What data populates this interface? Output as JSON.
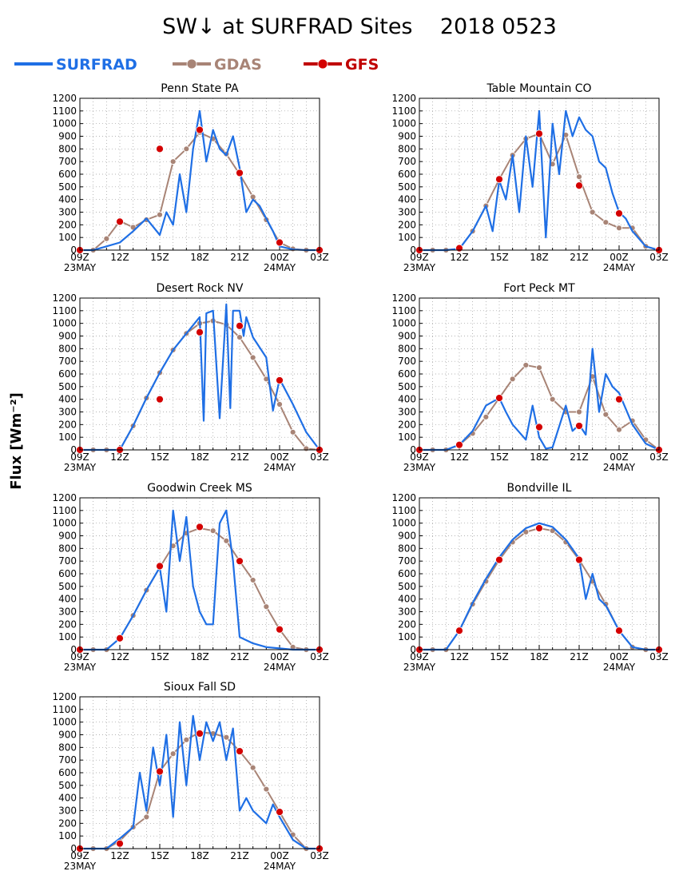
{
  "title": "SW↓ at SURFRAD Sites    2018 0523",
  "ylabel": "Flux [Wm⁻²]",
  "legend": [
    {
      "name": "SURFRAD",
      "color": "#1f6fe5",
      "marker": "none"
    },
    {
      "name": "GDAS",
      "color": "#a88476",
      "marker": "circle"
    },
    {
      "name": "GFS",
      "color": "#c00000",
      "marker": "circle"
    }
  ],
  "colors": {
    "surfrad": "#1f6fe5",
    "gdas": "#a88476",
    "gfs": "#c00000",
    "gfs_marker": "#d40000"
  },
  "x_tick_labels": [
    "09Z",
    "12Z",
    "15Z",
    "18Z",
    "21Z",
    "00Z",
    "03Z"
  ],
  "x_date_labels": [
    {
      "text": "23MAY",
      "at": "09Z"
    },
    {
      "text": "24MAY",
      "at": "00Z"
    }
  ],
  "chart_data": [
    {
      "type": "line",
      "title": "Penn State PA",
      "xlim": [
        "09Z",
        "03Z"
      ],
      "ylim": [
        0,
        1200
      ],
      "grid": true,
      "y_ticks": [
        0,
        100,
        200,
        300,
        400,
        500,
        600,
        700,
        800,
        900,
        1000,
        1100,
        1200
      ],
      "series": [
        {
          "name": "GDAS",
          "x": [
            9,
            10,
            11,
            12,
            13,
            14,
            15,
            16,
            17,
            18,
            19,
            20,
            21,
            22,
            23,
            24,
            25,
            26,
            27
          ],
          "y": [
            0,
            0,
            90,
            230,
            180,
            240,
            280,
            700,
            800,
            930,
            880,
            760,
            600,
            420,
            240,
            60,
            10,
            0,
            0
          ]
        },
        {
          "name": "GFS",
          "x": [
            9,
            12,
            15,
            18,
            21,
            24,
            27
          ],
          "y": [
            0,
            225,
            800,
            950,
            610,
            60,
            0
          ]
        },
        {
          "name": "SURFRAD",
          "x": [
            9,
            10,
            11,
            12,
            13,
            14,
            15,
            15.5,
            16,
            16.5,
            17,
            17.5,
            18,
            18.5,
            19,
            19.5,
            20,
            20.5,
            21,
            21.5,
            22,
            22.5,
            23,
            23.5,
            24,
            25,
            26,
            27
          ],
          "y": [
            0,
            0,
            30,
            60,
            150,
            250,
            120,
            300,
            200,
            600,
            300,
            800,
            1100,
            700,
            950,
            800,
            750,
            900,
            650,
            300,
            400,
            350,
            250,
            150,
            30,
            5,
            0,
            0
          ]
        }
      ]
    },
    {
      "type": "line",
      "title": "Table Mountain CO",
      "xlim": [
        "09Z",
        "03Z"
      ],
      "ylim": [
        0,
        1200
      ],
      "grid": true,
      "y_ticks": [
        0,
        100,
        200,
        300,
        400,
        500,
        600,
        700,
        800,
        900,
        1000,
        1100,
        1200
      ],
      "series": [
        {
          "name": "GDAS",
          "x": [
            9,
            10,
            11,
            12,
            13,
            14,
            15,
            16,
            17,
            18,
            19,
            20,
            21,
            22,
            23,
            24,
            25,
            26,
            27
          ],
          "y": [
            0,
            0,
            0,
            10,
            150,
            350,
            560,
            750,
            880,
            920,
            680,
            910,
            580,
            300,
            220,
            175,
            175,
            30,
            0
          ]
        },
        {
          "name": "GFS",
          "x": [
            9,
            12,
            15,
            18,
            21,
            24,
            27
          ],
          "y": [
            0,
            15,
            560,
            920,
            510,
            290,
            0
          ]
        },
        {
          "name": "SURFRAD",
          "x": [
            9,
            10,
            11,
            12,
            13,
            14,
            14.5,
            15,
            15.5,
            16,
            16.5,
            17,
            17.5,
            18,
            18.5,
            19,
            19.5,
            20,
            20.5,
            21,
            21.5,
            22,
            22.5,
            23,
            23.5,
            24,
            24.5,
            25,
            26,
            27
          ],
          "y": [
            0,
            0,
            0,
            10,
            150,
            350,
            150,
            550,
            400,
            750,
            300,
            900,
            500,
            1100,
            100,
            1000,
            600,
            1100,
            900,
            1050,
            950,
            900,
            700,
            650,
            450,
            300,
            250,
            150,
            30,
            0
          ]
        }
      ]
    },
    {
      "type": "line",
      "title": "Desert Rock NV",
      "xlim": [
        "09Z",
        "03Z"
      ],
      "ylim": [
        0,
        1200
      ],
      "grid": true,
      "y_ticks": [
        0,
        100,
        200,
        300,
        400,
        500,
        600,
        700,
        800,
        900,
        1000,
        1100,
        1200
      ],
      "series": [
        {
          "name": "GDAS",
          "x": [
            9,
            10,
            11,
            12,
            13,
            14,
            15,
            16,
            17,
            18,
            19,
            20,
            21,
            22,
            23,
            24,
            25,
            26,
            27
          ],
          "y": [
            0,
            0,
            0,
            0,
            190,
            410,
            610,
            790,
            920,
            1000,
            1020,
            990,
            890,
            730,
            560,
            360,
            140,
            10,
            0
          ]
        },
        {
          "name": "GFS",
          "x": [
            9,
            12,
            15,
            18,
            21,
            24,
            27
          ],
          "y": [
            0,
            0,
            400,
            930,
            980,
            550,
            0
          ]
        },
        {
          "name": "SURFRAD",
          "x": [
            9,
            10,
            11,
            12,
            13,
            14,
            15,
            16,
            17,
            18,
            18.3,
            18.5,
            19,
            19.5,
            20,
            20.3,
            20.5,
            21,
            21.3,
            21.5,
            22,
            23,
            23.5,
            24,
            25,
            26,
            27
          ],
          "y": [
            0,
            0,
            0,
            0,
            190,
            410,
            610,
            790,
            920,
            1050,
            230,
            1080,
            1100,
            250,
            1150,
            330,
            1100,
            1100,
            900,
            1050,
            890,
            730,
            310,
            560,
            360,
            140,
            0
          ]
        }
      ]
    },
    {
      "type": "line",
      "title": "Fort Peck MT",
      "xlim": [
        "09Z",
        "03Z"
      ],
      "ylim": [
        0,
        1200
      ],
      "grid": true,
      "y_ticks": [
        0,
        100,
        200,
        300,
        400,
        500,
        600,
        700,
        800,
        900,
        1000,
        1100,
        1200
      ],
      "series": [
        {
          "name": "GDAS",
          "x": [
            9,
            10,
            11,
            12,
            13,
            14,
            15,
            16,
            17,
            18,
            19,
            20,
            21,
            22,
            23,
            24,
            25,
            26,
            27
          ],
          "y": [
            0,
            0,
            0,
            40,
            130,
            260,
            410,
            560,
            670,
            650,
            400,
            300,
            300,
            580,
            280,
            160,
            230,
            80,
            0
          ]
        },
        {
          "name": "GFS",
          "x": [
            9,
            12,
            15,
            18,
            21,
            24,
            27
          ],
          "y": [
            0,
            40,
            410,
            180,
            190,
            400,
            0
          ]
        },
        {
          "name": "SURFRAD",
          "x": [
            9,
            10,
            11,
            12,
            13,
            14,
            15,
            15.5,
            16,
            17,
            17.5,
            18,
            18.5,
            19,
            20,
            20.5,
            21,
            21.5,
            22,
            22.5,
            23,
            23.5,
            24,
            25,
            26,
            27
          ],
          "y": [
            0,
            0,
            0,
            40,
            150,
            350,
            410,
            300,
            200,
            80,
            350,
            100,
            10,
            20,
            350,
            150,
            200,
            120,
            800,
            300,
            600,
            500,
            450,
            200,
            50,
            0
          ]
        }
      ]
    },
    {
      "type": "line",
      "title": "Goodwin Creek MS",
      "xlim": [
        "09Z",
        "03Z"
      ],
      "ylim": [
        0,
        1200
      ],
      "grid": true,
      "y_ticks": [
        0,
        100,
        200,
        300,
        400,
        500,
        600,
        700,
        800,
        900,
        1000,
        1100,
        1200
      ],
      "series": [
        {
          "name": "GDAS",
          "x": [
            9,
            10,
            11,
            12,
            13,
            14,
            15,
            16,
            17,
            18,
            19,
            20,
            21,
            22,
            23,
            24,
            25,
            26,
            27
          ],
          "y": [
            0,
            0,
            0,
            90,
            270,
            470,
            650,
            820,
            920,
            960,
            940,
            860,
            700,
            550,
            340,
            160,
            20,
            0,
            0
          ]
        },
        {
          "name": "GFS",
          "x": [
            9,
            12,
            15,
            18,
            21,
            24,
            27
          ],
          "y": [
            0,
            90,
            660,
            970,
            700,
            160,
            0
          ]
        },
        {
          "name": "SURFRAD",
          "x": [
            9,
            10,
            11,
            12,
            13,
            14,
            15,
            15.5,
            16,
            16.5,
            17,
            17.5,
            18,
            18.5,
            19,
            19.5,
            20,
            20.5,
            21,
            22,
            23,
            24,
            25,
            26,
            27
          ],
          "y": [
            0,
            0,
            0,
            90,
            270,
            470,
            650,
            300,
            1100,
            700,
            1050,
            500,
            300,
            200,
            200,
            1000,
            1100,
            700,
            100,
            50,
            20,
            10,
            0,
            0,
            0
          ]
        }
      ]
    },
    {
      "type": "line",
      "title": "Bondville IL",
      "xlim": [
        "09Z",
        "03Z"
      ],
      "ylim": [
        0,
        1200
      ],
      "grid": true,
      "y_ticks": [
        0,
        100,
        200,
        300,
        400,
        500,
        600,
        700,
        800,
        900,
        1000,
        1100,
        1200
      ],
      "series": [
        {
          "name": "GDAS",
          "x": [
            9,
            10,
            11,
            12,
            13,
            14,
            15,
            16,
            17,
            18,
            19,
            20,
            21,
            22,
            23,
            24,
            25,
            26,
            27
          ],
          "y": [
            0,
            0,
            0,
            150,
            360,
            540,
            710,
            850,
            930,
            960,
            940,
            850,
            710,
            540,
            360,
            150,
            20,
            0,
            0
          ]
        },
        {
          "name": "GFS",
          "x": [
            9,
            12,
            15,
            18,
            21,
            24,
            27
          ],
          "y": [
            0,
            150,
            710,
            960,
            710,
            150,
            0
          ]
        },
        {
          "name": "SURFRAD",
          "x": [
            9,
            10,
            11,
            12,
            13,
            14,
            15,
            16,
            17,
            18,
            19,
            20,
            21,
            21.5,
            22,
            22.5,
            23,
            23.5,
            24,
            25,
            26,
            27
          ],
          "y": [
            0,
            0,
            0,
            150,
            370,
            560,
            730,
            870,
            960,
            1000,
            970,
            870,
            720,
            400,
            600,
            400,
            350,
            250,
            150,
            20,
            0,
            0
          ]
        }
      ]
    },
    {
      "type": "line",
      "title": "Sioux Fall SD",
      "xlim": [
        "09Z",
        "03Z"
      ],
      "ylim": [
        0,
        1200
      ],
      "grid": true,
      "y_ticks": [
        0,
        100,
        200,
        300,
        400,
        500,
        600,
        700,
        800,
        900,
        1000,
        1100,
        1200
      ],
      "series": [
        {
          "name": "GDAS",
          "x": [
            9,
            10,
            11,
            12,
            13,
            14,
            15,
            16,
            17,
            18,
            19,
            20,
            21,
            22,
            23,
            24,
            25,
            26,
            27
          ],
          "y": [
            0,
            0,
            0,
            60,
            170,
            250,
            610,
            750,
            860,
            920,
            910,
            880,
            770,
            640,
            470,
            290,
            110,
            0,
            0
          ]
        },
        {
          "name": "GFS",
          "x": [
            9,
            12,
            15,
            18,
            21,
            24,
            27
          ],
          "y": [
            0,
            40,
            610,
            910,
            770,
            290,
            0
          ]
        },
        {
          "name": "SURFRAD",
          "x": [
            9,
            10,
            11,
            12,
            13,
            13.5,
            14,
            14.5,
            15,
            15.5,
            16,
            16.5,
            17,
            17.5,
            18,
            18.5,
            19,
            19.5,
            20,
            20.5,
            21,
            21.5,
            22,
            23,
            23.5,
            24,
            25,
            26,
            27
          ],
          "y": [
            0,
            0,
            0,
            80,
            170,
            600,
            300,
            800,
            500,
            900,
            250,
            1000,
            500,
            1050,
            700,
            1000,
            850,
            1000,
            700,
            950,
            300,
            400,
            300,
            200,
            350,
            250,
            70,
            0,
            0
          ]
        }
      ]
    }
  ]
}
